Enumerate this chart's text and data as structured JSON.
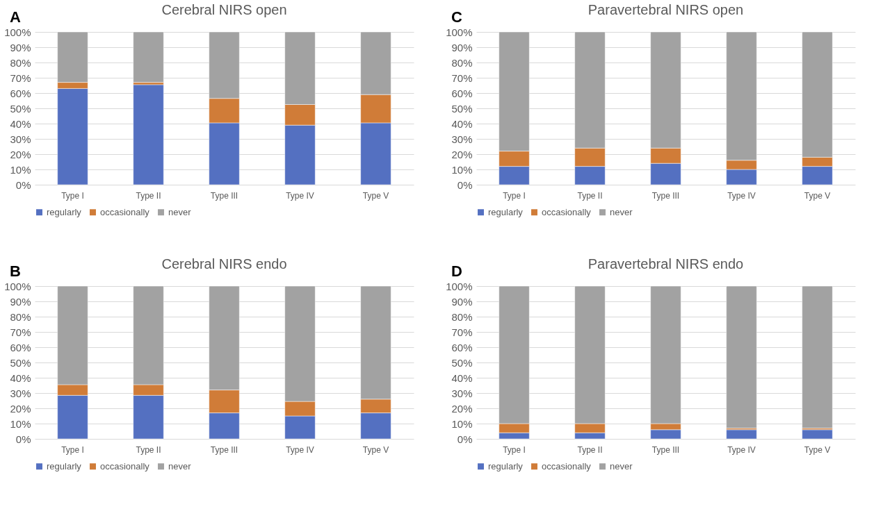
{
  "chart_data": [
    {
      "type": "bar",
      "title": "Cerebral NIRS open",
      "annotations": [
        "A"
      ],
      "stacked": true,
      "categories": [
        "Type I",
        "Type II",
        "Type III",
        "Type IV",
        "Type V"
      ],
      "ylim": [
        0,
        100
      ],
      "yticks": [
        {
          "value": 0,
          "label": "0%"
        },
        {
          "value": 10,
          "label": "10%"
        },
        {
          "value": 20,
          "label": "20%"
        },
        {
          "value": 30,
          "label": "30%"
        },
        {
          "value": 40,
          "label": "40%"
        },
        {
          "value": 50,
          "label": "50%"
        },
        {
          "value": 60,
          "label": "60%"
        },
        {
          "value": 70,
          "label": "70%"
        },
        {
          "value": 80,
          "label": "80%"
        },
        {
          "value": 90,
          "label": "90%"
        },
        {
          "value": 100,
          "label": "100%"
        }
      ],
      "grid": "y",
      "legend": "bottom",
      "series": [
        {
          "name": "regularly",
          "color": "#5470c1",
          "values": [
            63,
            65.5,
            40.5,
            39,
            40.5
          ]
        },
        {
          "name": "occasionally",
          "color": "#d07c38",
          "values": [
            4,
            1.5,
            16,
            13.5,
            18.5
          ]
        },
        {
          "name": "never",
          "color": "#a2a2a2",
          "values": [
            33,
            33,
            43.5,
            47.5,
            41
          ]
        }
      ]
    },
    {
      "type": "bar",
      "title": "Paravertebral NIRS open",
      "annotations": [
        "C"
      ],
      "stacked": true,
      "categories": [
        "Type I",
        "Type II",
        "Type III",
        "Type IV",
        "Type V"
      ],
      "ylim": [
        0,
        100
      ],
      "yticks": [
        {
          "value": 0,
          "label": "0%"
        },
        {
          "value": 10,
          "label": "10%"
        },
        {
          "value": 20,
          "label": "20%"
        },
        {
          "value": 30,
          "label": "30%"
        },
        {
          "value": 40,
          "label": "40%"
        },
        {
          "value": 50,
          "label": "50%"
        },
        {
          "value": 60,
          "label": "60%"
        },
        {
          "value": 70,
          "label": "70%"
        },
        {
          "value": 80,
          "label": "80%"
        },
        {
          "value": 90,
          "label": "90%"
        },
        {
          "value": 100,
          "label": "100%"
        }
      ],
      "grid": "y",
      "legend": "bottom",
      "series": [
        {
          "name": "regularly",
          "color": "#5470c1",
          "values": [
            12,
            12,
            14,
            10,
            12
          ]
        },
        {
          "name": "occasionally",
          "color": "#d07c38",
          "values": [
            10,
            12,
            10,
            6,
            6
          ]
        },
        {
          "name": "never",
          "color": "#a2a2a2",
          "values": [
            78,
            76,
            76,
            84,
            82
          ]
        }
      ]
    },
    {
      "type": "bar",
      "title": "Cerebral NIRS endo",
      "annotations": [
        "B"
      ],
      "stacked": true,
      "categories": [
        "Type I",
        "Type II",
        "Type III",
        "Type IV",
        "Type V"
      ],
      "ylim": [
        0,
        100
      ],
      "yticks": [
        {
          "value": 0,
          "label": "0%"
        },
        {
          "value": 10,
          "label": "10%"
        },
        {
          "value": 20,
          "label": "20%"
        },
        {
          "value": 30,
          "label": "30%"
        },
        {
          "value": 40,
          "label": "40%"
        },
        {
          "value": 50,
          "label": "50%"
        },
        {
          "value": 60,
          "label": "60%"
        },
        {
          "value": 70,
          "label": "70%"
        },
        {
          "value": 80,
          "label": "80%"
        },
        {
          "value": 90,
          "label": "90%"
        },
        {
          "value": 100,
          "label": "100%"
        }
      ],
      "grid": "y",
      "legend": "bottom",
      "series": [
        {
          "name": "regularly",
          "color": "#5470c1",
          "values": [
            28.5,
            28.5,
            17,
            15,
            17
          ]
        },
        {
          "name": "occasionally",
          "color": "#d07c38",
          "values": [
            7,
            7,
            15,
            9.5,
            9
          ]
        },
        {
          "name": "never",
          "color": "#a2a2a2",
          "values": [
            64.5,
            64.5,
            68,
            75.5,
            74
          ]
        }
      ]
    },
    {
      "type": "bar",
      "title": "Paravertebral NIRS endo",
      "annotations": [
        "D"
      ],
      "stacked": true,
      "categories": [
        "Type I",
        "Type II",
        "Type III",
        "Type IV",
        "Type V"
      ],
      "ylim": [
        0,
        100
      ],
      "yticks": [
        {
          "value": 0,
          "label": "0%"
        },
        {
          "value": 10,
          "label": "10%"
        },
        {
          "value": 20,
          "label": "20%"
        },
        {
          "value": 30,
          "label": "30%"
        },
        {
          "value": 40,
          "label": "40%"
        },
        {
          "value": 50,
          "label": "50%"
        },
        {
          "value": 60,
          "label": "60%"
        },
        {
          "value": 70,
          "label": "70%"
        },
        {
          "value": 80,
          "label": "80%"
        },
        {
          "value": 90,
          "label": "90%"
        },
        {
          "value": 100,
          "label": "100%"
        }
      ],
      "grid": "y",
      "legend": "bottom",
      "series": [
        {
          "name": "regularly",
          "color": "#5470c1",
          "values": [
            4,
            4,
            6,
            6,
            6
          ]
        },
        {
          "name": "occasionally",
          "color": "#d07c38",
          "values": [
            6,
            6,
            4,
            1,
            1
          ]
        },
        {
          "name": "never",
          "color": "#a2a2a2",
          "values": [
            90,
            90,
            90,
            93,
            93
          ]
        }
      ]
    }
  ]
}
